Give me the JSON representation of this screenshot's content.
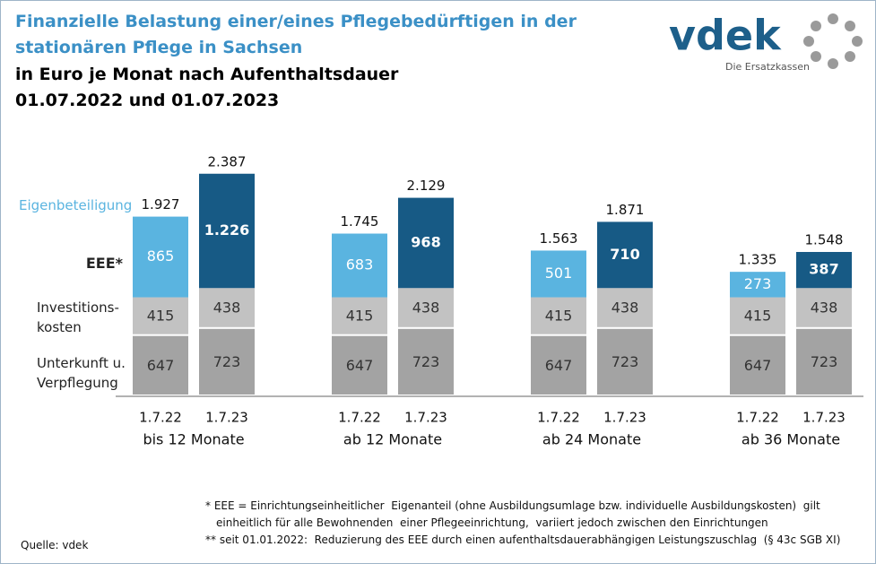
{
  "chart_data": {
    "type": "stacked_bar",
    "title": [
      "Finanzielle Belastung einer/eines Pflegebedürftigen in der",
      "stationären Pflege in Sachsen"
    ],
    "subtitle": [
      "in Euro je Monat nach Aufenthaltsdauer",
      "01.07.2022 und 01.07.2023"
    ],
    "logo": {
      "text": "vdek",
      "tagline": "Die Ersatzkassen"
    },
    "categories": [
      "1.7.22",
      "1.7.23",
      "1.7.22",
      "1.7.23",
      "1.7.22",
      "1.7.23",
      "1.7.22",
      "1.7.23"
    ],
    "groups": [
      "bis 12 Monate",
      "ab 12 Monate",
      "ab 24 Monate",
      "ab 36 Monate"
    ],
    "ylim": [
      0,
      2500
    ],
    "series": [
      {
        "name": "Unterkunft u.\nVerpflegung",
        "color": "#a3a3a3",
        "values": [
          647,
          723,
          647,
          723,
          647,
          723,
          647,
          723
        ]
      },
      {
        "name": "Investitions-\nkosten",
        "color": "#c2c2c2",
        "values": [
          415,
          438,
          415,
          438,
          415,
          438,
          415,
          438
        ]
      },
      {
        "name": "EEE*",
        "colors": [
          "#5ab4e0",
          "#175a85"
        ],
        "values": [
          865,
          1226,
          683,
          968,
          501,
          710,
          273,
          387
        ],
        "value_labels": [
          "865",
          "1.226",
          "683",
          "968",
          "501",
          "710",
          "273",
          "387"
        ]
      }
    ],
    "totals": {
      "name": "Eigenbeteiligung",
      "color": "#5ab4e0",
      "values": [
        1927,
        2387,
        1745,
        2129,
        1563,
        1871,
        1335,
        1548
      ],
      "value_labels": [
        "1.927",
        "2.387",
        "1.745",
        "2.129",
        "1.563",
        "1.871",
        "1.335",
        "1.548"
      ]
    },
    "footnotes": [
      "* EEE = Einrichtungseinheitlicher  Eigenanteil (ohne Ausbildungsumlage bzw. individuelle Ausbildungskosten)  gilt",
      "einheitlich für alle Bewohnenden  einer Pflegeeinrichtung,  variiert jedoch zwischen den Einrichtungen",
      "** seit 01.01.2022:  Reduzierung des EEE durch einen aufenthaltsdauerabhängigen Leistungszuschlag  (§ 43c SGB XI)"
    ],
    "source": "Quelle: vdek"
  }
}
